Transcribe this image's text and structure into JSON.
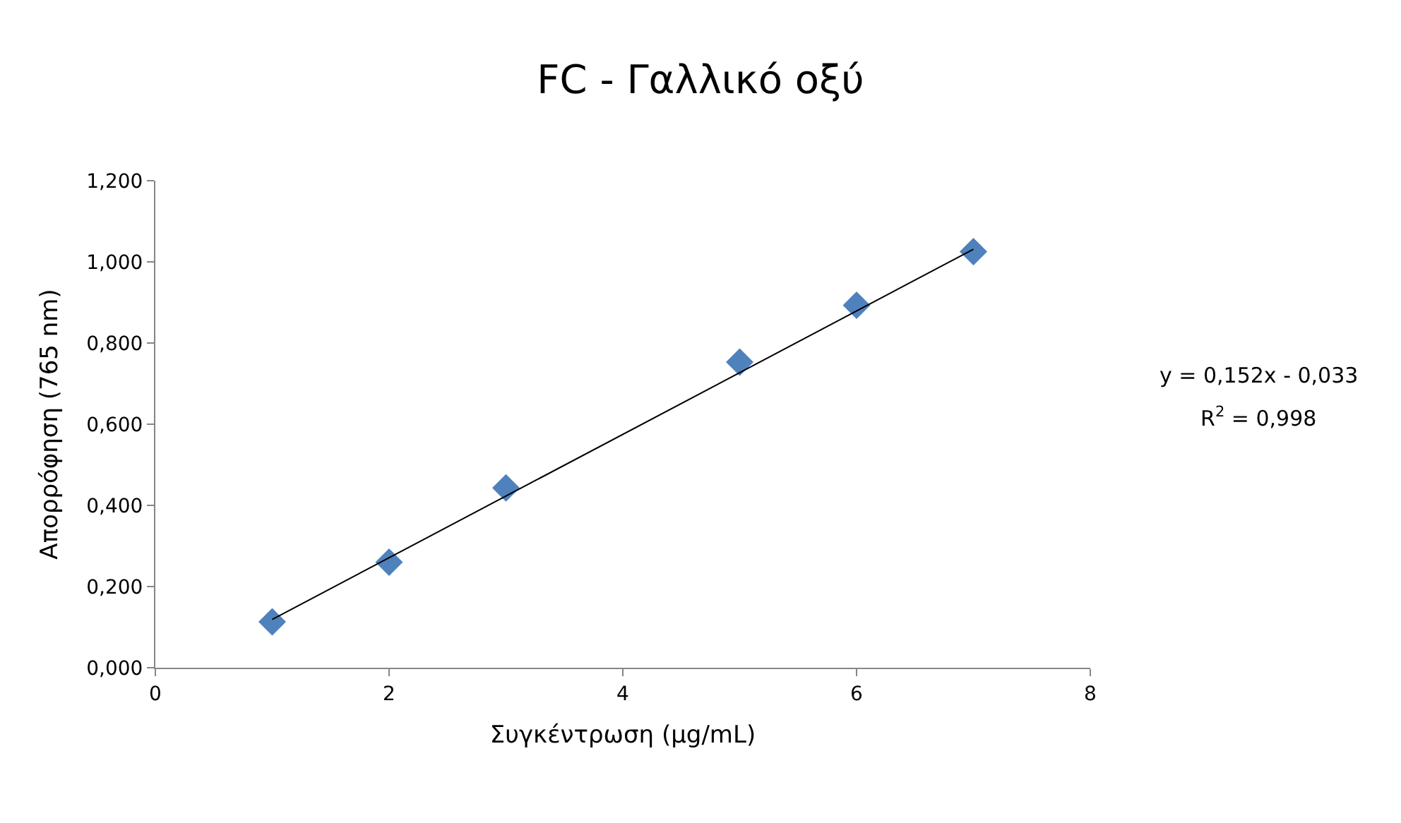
{
  "chart_data": {
    "type": "scatter",
    "title": "FC - Γαλλικό οξύ",
    "xlabel": "Συγκέντρωση (μg/mL)",
    "ylabel": "Απορρόφηση (765 nm)",
    "x": [
      1,
      2,
      3,
      5,
      6,
      7
    ],
    "series": [
      {
        "color": "#4f81bd",
        "marker": "diamond",
        "values": [
          0.113,
          0.26,
          0.443,
          0.753,
          0.893,
          1.025
        ]
      },
      {
        "type": "line",
        "color": "#000000",
        "marker": "none",
        "line_style": "solid",
        "x": [
          1,
          7
        ],
        "values": [
          0.119,
          1.031
        ]
      }
    ],
    "xlim": [
      0,
      8
    ],
    "xticks": [
      0,
      2,
      4,
      6,
      8
    ],
    "ylim": [
      0,
      1.2
    ],
    "yticks": [
      {
        "value": 0,
        "label": "0,000"
      },
      {
        "value": 0.2,
        "label": "0,200"
      },
      {
        "value": 0.4,
        "label": "0,400"
      },
      {
        "value": 0.6,
        "label": "0,600"
      },
      {
        "value": 0.8,
        "label": "0,800"
      },
      {
        "value": 1.0,
        "label": "1,000"
      },
      {
        "value": 1.2,
        "label": "1,200"
      }
    ],
    "annotations": [
      "y = 0,152x - 0,033",
      "R$^{2}$ = 0,998"
    ]
  }
}
